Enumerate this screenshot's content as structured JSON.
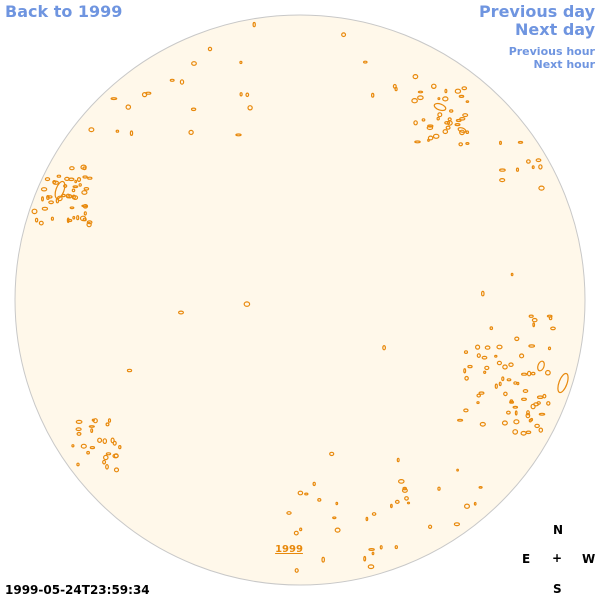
{
  "nav": {
    "back": "Back to 1999",
    "previous_day": "Previous day",
    "next_day": "Next day",
    "previous_hour": "Previous hour",
    "next_hour": "Next hour"
  },
  "timestamp": "1999-05-24T23:59:34",
  "compass": {
    "north": "N",
    "east": "E",
    "center": "+",
    "west": "W",
    "south": "S"
  },
  "disk": {
    "year_label": "1999"
  },
  "colors": {
    "disk_fill": "#fff8ea",
    "disk_stroke": "#c8c8c8",
    "contour": "#e8890c",
    "link": "#6f95e0"
  }
}
